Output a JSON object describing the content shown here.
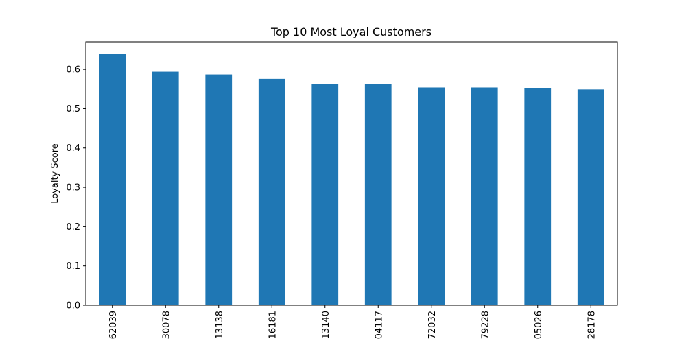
{
  "chart_data": {
    "type": "bar",
    "title": "Top 10 Most Loyal Customers",
    "xlabel": "",
    "ylabel": "Loyalty Score",
    "categories": [
      "62039",
      "30078",
      "13138",
      "16181",
      "13140",
      "04117",
      "72032",
      "79228",
      "05026",
      "28178"
    ],
    "values": [
      0.639,
      0.594,
      0.587,
      0.576,
      0.563,
      0.563,
      0.554,
      0.554,
      0.552,
      0.549
    ],
    "ylim": [
      0,
      0.67
    ],
    "yticks": [
      0.0,
      0.1,
      0.2,
      0.3,
      0.4,
      0.5,
      0.6
    ],
    "ytick_labels": [
      "0.0",
      "0.1",
      "0.2",
      "0.3",
      "0.4",
      "0.5",
      "0.6"
    ],
    "bar_color": "#1f77b4",
    "grid": false,
    "legend": "none"
  }
}
